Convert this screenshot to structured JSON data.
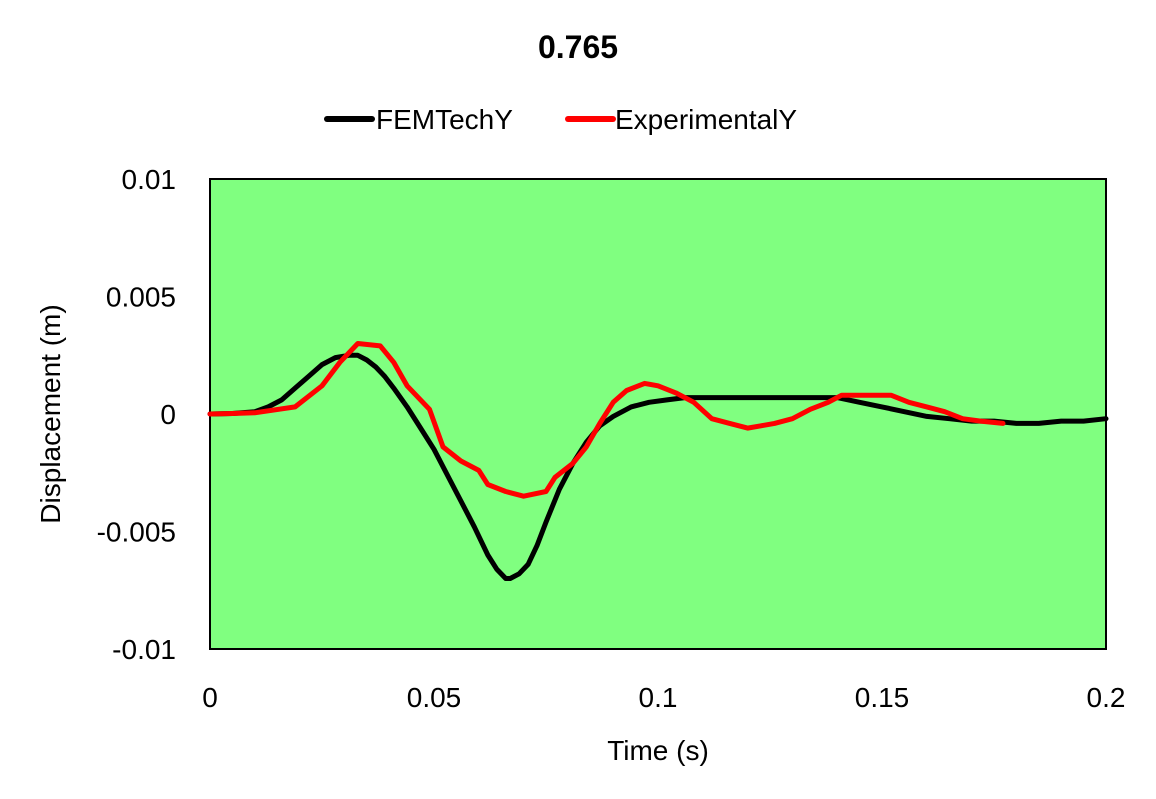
{
  "chart_data": {
    "type": "line",
    "title": "0.765",
    "xlabel": "Time (s)",
    "ylabel": "Displacement (m)",
    "xlim": [
      0,
      0.2
    ],
    "ylim": [
      -0.01,
      0.01
    ],
    "x_ticks": [
      "0",
      "0.05",
      "0.1",
      "0.15",
      "0.2"
    ],
    "y_ticks": [
      "0.01",
      "0.005",
      "0",
      "-0.005",
      "-0.01"
    ],
    "x_tick_values": [
      0,
      0.05,
      0.1,
      0.15,
      0.2
    ],
    "y_tick_values": [
      0.01,
      0.005,
      0,
      -0.005,
      -0.01
    ],
    "grid": false,
    "legend_position": "top-center",
    "plot_background": "#80ff80",
    "series": [
      {
        "name": "FEMTechY",
        "color": "#000000",
        "x": [
          0,
          0.005,
          0.01,
          0.013,
          0.016,
          0.019,
          0.022,
          0.025,
          0.028,
          0.031,
          0.033,
          0.035,
          0.037,
          0.039,
          0.041,
          0.044,
          0.047,
          0.05,
          0.053,
          0.056,
          0.059,
          0.062,
          0.064,
          0.066,
          0.067,
          0.069,
          0.071,
          0.073,
          0.075,
          0.078,
          0.081,
          0.084,
          0.087,
          0.09,
          0.094,
          0.098,
          0.102,
          0.106,
          0.11,
          0.115,
          0.12,
          0.125,
          0.13,
          0.135,
          0.14,
          0.145,
          0.15,
          0.155,
          0.16,
          0.165,
          0.17,
          0.175,
          0.18,
          0.185,
          0.19,
          0.195,
          0.2
        ],
        "y": [
          0,
          2e-05,
          0.0001,
          0.0003,
          0.0006,
          0.0011,
          0.0016,
          0.0021,
          0.0024,
          0.0025,
          0.0025,
          0.0023,
          0.002,
          0.0016,
          0.0011,
          0.0003,
          -0.0006,
          -0.0015,
          -0.0026,
          -0.0037,
          -0.0048,
          -0.006,
          -0.0066,
          -0.007,
          -0.007,
          -0.0068,
          -0.0064,
          -0.0056,
          -0.0046,
          -0.0032,
          -0.0021,
          -0.0012,
          -0.0005,
          -0.0001,
          0.0003,
          0.0005,
          0.0006,
          0.0007,
          0.0007,
          0.0007,
          0.0007,
          0.0007,
          0.0007,
          0.0007,
          0.0007,
          0.0005,
          0.0003,
          0.0001,
          -0.0001,
          -0.0002,
          -0.0003,
          -0.0003,
          -0.0004,
          -0.0004,
          -0.0003,
          -0.0003,
          -0.0002
        ]
      },
      {
        "name": "ExperimentalY",
        "color": "#ff0000",
        "x": [
          0,
          0.005,
          0.01,
          0.019,
          0.025,
          0.029,
          0.033,
          0.038,
          0.041,
          0.044,
          0.049,
          0.052,
          0.056,
          0.06,
          0.062,
          0.066,
          0.07,
          0.075,
          0.077,
          0.081,
          0.084,
          0.087,
          0.09,
          0.093,
          0.097,
          0.1,
          0.104,
          0.108,
          0.112,
          0.116,
          0.12,
          0.123,
          0.126,
          0.13,
          0.134,
          0.138,
          0.141,
          0.144,
          0.148,
          0.152,
          0.156,
          0.16,
          0.164,
          0.168,
          0.172,
          0.177
        ],
        "y": [
          0,
          2e-05,
          5e-05,
          0.0003,
          0.0012,
          0.0022,
          0.003,
          0.0029,
          0.0022,
          0.0012,
          0.0002,
          -0.0014,
          -0.002,
          -0.0024,
          -0.003,
          -0.0033,
          -0.0035,
          -0.0033,
          -0.0027,
          -0.0021,
          -0.0014,
          -0.0004,
          0.0005,
          0.001,
          0.0013,
          0.0012,
          0.0009,
          0.0005,
          -0.0002,
          -0.0004,
          -0.0006,
          -0.0005,
          -0.0004,
          -0.0002,
          0.0002,
          0.0005,
          0.0008,
          0.0008,
          0.0008,
          0.0008,
          0.0005,
          0.0003,
          0.0001,
          -0.0002,
          -0.0003,
          -0.0004
        ]
      }
    ]
  }
}
